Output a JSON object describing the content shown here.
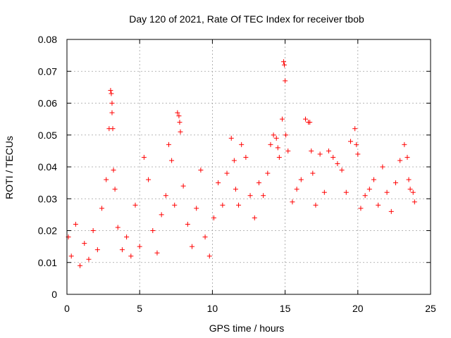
{
  "chart_data": {
    "type": "scatter",
    "title": "Day 120 of 2021, Rate Of TEC Index for receiver tbob",
    "xlabel": "GPS time / hours",
    "ylabel": "ROTI / TECUs",
    "xlim": [
      0,
      25
    ],
    "ylim": [
      0,
      0.08
    ],
    "xticks": [
      0,
      5,
      10,
      15,
      20,
      25
    ],
    "yticks": [
      0,
      0.01,
      0.02,
      0.03,
      0.04,
      0.05,
      0.06,
      0.07,
      0.08
    ],
    "xtick_labels": [
      "0",
      "5",
      "10",
      "15",
      "20",
      "25"
    ],
    "ytick_labels": [
      "0",
      "0.01",
      "0.02",
      "0.03",
      "0.04",
      "0.05",
      "0.06",
      "0.07",
      "0.08"
    ],
    "grid": true,
    "marker": "+",
    "color": "#ff0000",
    "series": [
      {
        "x": [
          0.1,
          0.3,
          0.6,
          0.9,
          1.2,
          1.5,
          1.8,
          2.1,
          2.4,
          2.7,
          2.9,
          3.0,
          3.05,
          3.1,
          3.1,
          3.15,
          3.2,
          3.3,
          3.5,
          3.8,
          4.1,
          4.4,
          4.7,
          5.0,
          5.3,
          5.6,
          5.9,
          6.2,
          6.5,
          6.8,
          7.0,
          7.2,
          7.4,
          7.6,
          7.7,
          7.75,
          7.8,
          8.0,
          8.3,
          8.6,
          8.9,
          9.2,
          9.5,
          9.8,
          10.1,
          10.4,
          10.7,
          11.0,
          11.3,
          11.5,
          11.6,
          11.8,
          12.0,
          12.3,
          12.6,
          12.9,
          13.2,
          13.5,
          13.8,
          14.0,
          14.2,
          14.4,
          14.5,
          14.6,
          14.8,
          14.9,
          14.95,
          15.0,
          15.05,
          15.2,
          15.5,
          15.8,
          16.1,
          16.4,
          16.6,
          16.7,
          16.8,
          16.9,
          17.1,
          17.4,
          17.7,
          18.0,
          18.3,
          18.6,
          18.9,
          19.2,
          19.5,
          19.8,
          19.9,
          20.0,
          20.2,
          20.5,
          20.8,
          21.1,
          21.4,
          21.7,
          22.0,
          22.3,
          22.6,
          22.9,
          23.2,
          23.4,
          23.5,
          23.6,
          23.8,
          23.9
        ],
        "y": [
          0.018,
          0.012,
          0.022,
          0.009,
          0.016,
          0.011,
          0.02,
          0.014,
          0.027,
          0.036,
          0.052,
          0.064,
          0.063,
          0.06,
          0.057,
          0.052,
          0.039,
          0.033,
          0.021,
          0.014,
          0.018,
          0.012,
          0.028,
          0.015,
          0.043,
          0.036,
          0.02,
          0.013,
          0.025,
          0.031,
          0.047,
          0.042,
          0.028,
          0.057,
          0.056,
          0.054,
          0.051,
          0.034,
          0.022,
          0.015,
          0.027,
          0.039,
          0.018,
          0.012,
          0.024,
          0.035,
          0.028,
          0.038,
          0.049,
          0.042,
          0.033,
          0.028,
          0.047,
          0.043,
          0.031,
          0.024,
          0.035,
          0.031,
          0.038,
          0.047,
          0.05,
          0.049,
          0.046,
          0.043,
          0.055,
          0.073,
          0.072,
          0.067,
          0.05,
          0.045,
          0.029,
          0.033,
          0.036,
          0.055,
          0.054,
          0.054,
          0.045,
          0.038,
          0.028,
          0.044,
          0.032,
          0.045,
          0.043,
          0.041,
          0.039,
          0.032,
          0.048,
          0.052,
          0.047,
          0.044,
          0.027,
          0.031,
          0.033,
          0.036,
          0.028,
          0.04,
          0.032,
          0.026,
          0.035,
          0.042,
          0.047,
          0.043,
          0.036,
          0.033,
          0.032,
          0.029
        ]
      }
    ]
  }
}
